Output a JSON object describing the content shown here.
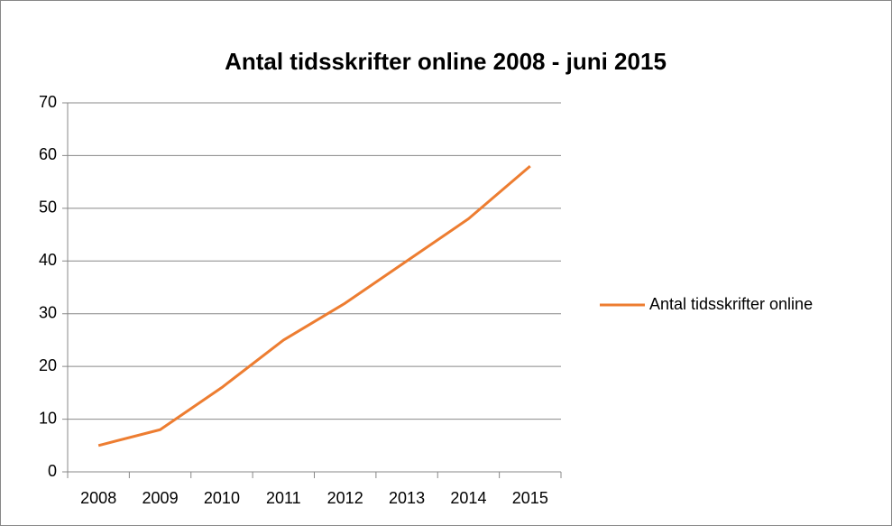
{
  "chart_data": {
    "type": "line",
    "title": "Antal tidsskrifter online 2008 - juni 2015",
    "categories": [
      "2008",
      "2009",
      "2010",
      "2011",
      "2012",
      "2013",
      "2014",
      "2015"
    ],
    "series": [
      {
        "name": "Antal tidsskrifter online",
        "color": "#ed7d31",
        "values": [
          5,
          8,
          16,
          25,
          32,
          40,
          48,
          58
        ]
      }
    ],
    "ylim": [
      0,
      70
    ],
    "yticks": [
      0,
      10,
      20,
      30,
      40,
      50,
      60,
      70
    ],
    "grid": true,
    "legend": "right"
  }
}
